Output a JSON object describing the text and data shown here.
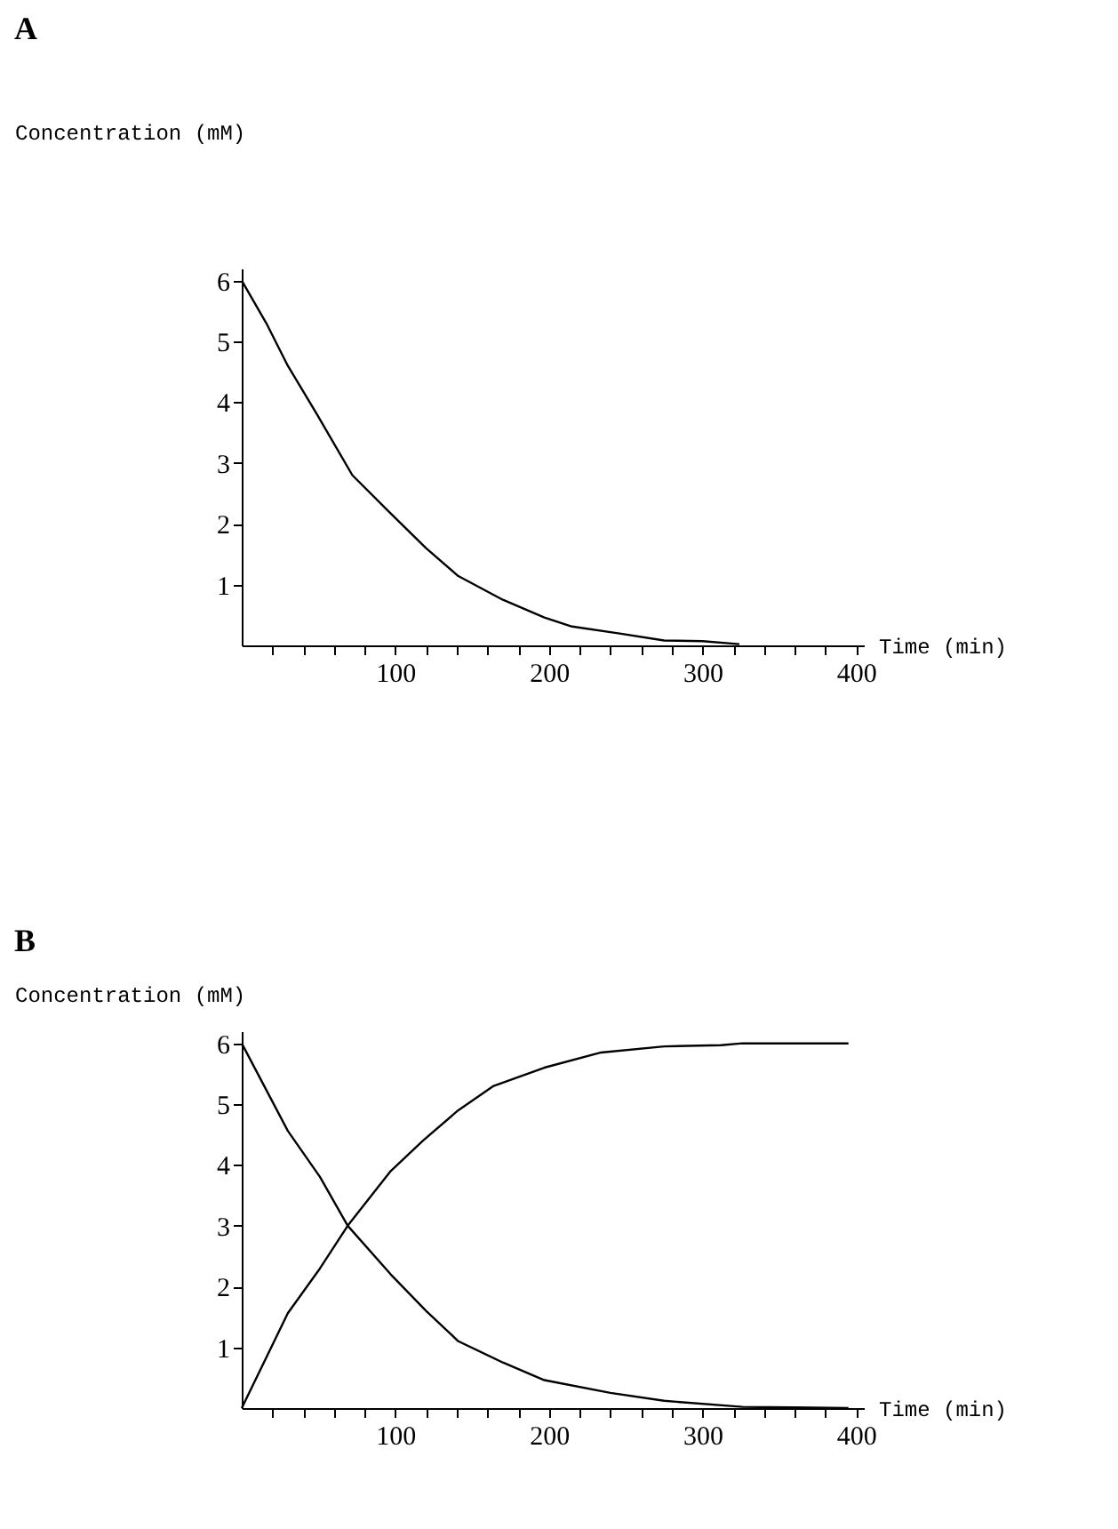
{
  "chart_data": [
    {
      "type": "line",
      "title": "A",
      "xlabel": "Time   (min)",
      "ylabel": "Concentration    (mM)",
      "xlim": [
        0,
        405
      ],
      "ylim": [
        0,
        6.2
      ],
      "xticks": [
        {
          "value": 20,
          "label": null
        },
        {
          "value": 40,
          "label": null
        },
        {
          "value": 60,
          "label": null
        },
        {
          "value": 80,
          "label": null
        },
        100,
        {
          "value": 120,
          "label": null
        },
        {
          "value": 140,
          "label": null
        },
        {
          "value": 160,
          "label": null
        },
        {
          "value": 180,
          "label": null
        },
        200,
        {
          "value": 220,
          "label": null
        },
        {
          "value": 240,
          "label": null
        },
        {
          "value": 260,
          "label": null
        },
        {
          "value": 280,
          "label": null
        },
        300,
        {
          "value": 320,
          "label": null
        },
        {
          "value": 340,
          "label": null
        },
        {
          "value": 360,
          "label": null
        },
        {
          "value": 380,
          "label": null
        },
        400
      ],
      "yticks": [
        1,
        2,
        3,
        4,
        5,
        6
      ],
      "grid": false,
      "marker": "none",
      "line_style": "solid",
      "series": [
        {
          "color": "#000000",
          "x": [
            0,
            16,
            30,
            49,
            72,
            97,
            120,
            141,
            170,
            197,
            215,
            245,
            275,
            300,
            324
          ],
          "values": [
            6.0,
            5.3,
            4.6,
            3.8,
            2.8,
            2.17,
            1.6,
            1.14,
            0.75,
            0.46,
            0.31,
            0.2,
            0.08,
            0.07,
            0.02
          ]
        }
      ]
    },
    {
      "type": "line",
      "title": "B",
      "xlabel": "Time   (min)",
      "ylabel": "Concentration    (mM)",
      "xlim": [
        0,
        405
      ],
      "ylim": [
        0,
        6.2
      ],
      "xticks": [
        {
          "value": 20,
          "label": null
        },
        {
          "value": 40,
          "label": null
        },
        {
          "value": 60,
          "label": null
        },
        {
          "value": 80,
          "label": null
        },
        100,
        {
          "value": 120,
          "label": null
        },
        {
          "value": 140,
          "label": null
        },
        {
          "value": 160,
          "label": null
        },
        {
          "value": 180,
          "label": null
        },
        200,
        {
          "value": 220,
          "label": null
        },
        {
          "value": 240,
          "label": null
        },
        {
          "value": 260,
          "label": null
        },
        {
          "value": 280,
          "label": null
        },
        300,
        {
          "value": 320,
          "label": null
        },
        {
          "value": 340,
          "label": null
        },
        {
          "value": 360,
          "label": null
        },
        {
          "value": 380,
          "label": null
        },
        400
      ],
      "yticks": [
        1,
        2,
        3,
        4,
        5,
        6
      ],
      "grid": false,
      "marker": "none",
      "line_style": "solid",
      "series": [
        {
          "color": "#000000",
          "x": [
            0,
            30,
            51,
            69,
            97,
            120,
            141,
            170,
            197,
            240,
            275,
            326,
            360,
            395
          ],
          "values": [
            6.0,
            4.56,
            3.8,
            3.0,
            2.2,
            1.6,
            1.1,
            0.75,
            0.46,
            0.25,
            0.12,
            0.02,
            0.01,
            0.0
          ]
        },
        {
          "color": "#000000",
          "x": [
            0,
            30,
            51,
            69,
            97,
            118,
            141,
            164,
            197,
            234,
            275,
            312,
            326,
            395
          ],
          "values": [
            0.0,
            1.56,
            2.3,
            3.0,
            3.9,
            4.4,
            4.9,
            5.3,
            5.6,
            5.85,
            5.95,
            5.97,
            6.0,
            6.0
          ]
        }
      ]
    }
  ]
}
